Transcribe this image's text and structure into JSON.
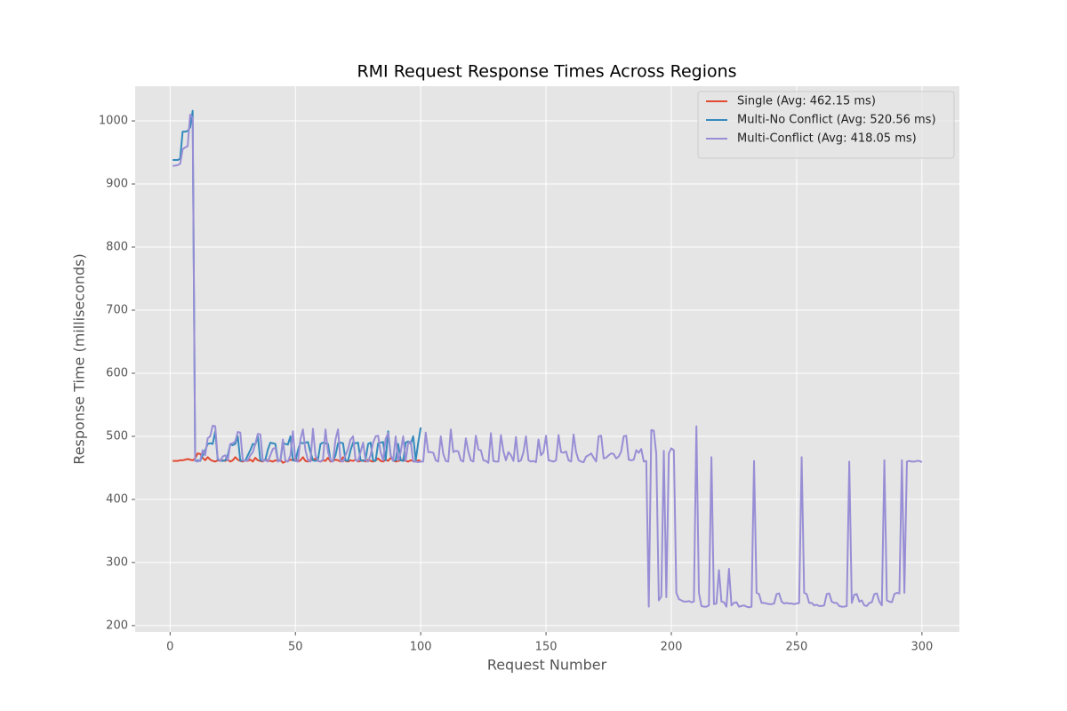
{
  "chart_data": {
    "type": "line",
    "title": "RMI Request Response Times Across Regions",
    "x_label": "Request Number",
    "y_label": "Response Time (milliseconds)",
    "xlim": [
      -13.95,
      314.95
    ],
    "ylim": [
      190,
      1055
    ],
    "xticks": [
      0,
      50,
      100,
      150,
      200,
      250,
      300
    ],
    "yticks": [
      200,
      300,
      400,
      500,
      600,
      700,
      800,
      900,
      1000
    ],
    "grid": true,
    "legend": "upper right",
    "series": [
      {
        "name": "Single (Avg: 462.15 ms)",
        "color": "#E24A33",
        "x": [
          1,
          2,
          3,
          4,
          5,
          6,
          7,
          8,
          9,
          10,
          11,
          12,
          13,
          14,
          15,
          16,
          17,
          18,
          19,
          20,
          21,
          22,
          23,
          24,
          25,
          26,
          27,
          28,
          29,
          30,
          31,
          32,
          33,
          34,
          35,
          36,
          37,
          38,
          39,
          40,
          41,
          42,
          43,
          44,
          45,
          46,
          47,
          48,
          49,
          50,
          51,
          52,
          53,
          54,
          55,
          56,
          57,
          58,
          59,
          60,
          61,
          62,
          63,
          64,
          65,
          66,
          67,
          68,
          69,
          70,
          71,
          72,
          73,
          74,
          75,
          76,
          77,
          78,
          79,
          80,
          81,
          82,
          83,
          84,
          85,
          86,
          87,
          88,
          89,
          90,
          91,
          92,
          93,
          94,
          95,
          96,
          97,
          98,
          99,
          100
        ],
        "values": [
          461,
          461,
          461,
          462,
          462,
          463,
          464,
          463,
          462,
          465,
          473,
          472,
          466,
          462,
          467,
          463,
          461,
          460,
          462,
          461,
          462,
          461,
          463,
          460,
          462,
          467,
          463,
          461,
          460,
          462,
          461,
          463,
          460,
          466,
          462,
          461,
          460,
          463,
          462,
          461,
          460,
          462,
          461,
          463,
          458,
          460,
          461,
          463,
          462,
          465,
          460,
          462,
          467,
          461,
          460,
          463,
          462,
          465,
          461,
          460,
          462,
          461,
          466,
          460,
          461,
          463,
          462,
          460,
          467,
          461,
          460,
          462,
          461,
          463,
          460,
          461,
          462,
          460,
          463,
          461,
          460,
          462,
          465,
          461,
          460,
          463,
          461,
          466,
          462,
          460,
          461,
          462,
          463,
          461,
          460,
          462,
          461,
          460,
          462,
          461
        ]
      },
      {
        "name": "Multi-No Conflict (Avg: 520.56 ms)",
        "color": "#348ABD",
        "x": [
          1,
          2,
          3,
          4,
          5,
          6,
          7,
          8,
          9,
          10,
          11,
          12,
          13,
          14,
          15,
          16,
          17,
          18,
          19,
          20,
          21,
          22,
          23,
          24,
          25,
          26,
          27,
          28,
          29,
          30,
          31,
          32,
          33,
          34,
          35,
          36,
          37,
          38,
          39,
          40,
          41,
          42,
          43,
          44,
          45,
          46,
          47,
          48,
          49,
          50,
          51,
          52,
          53,
          54,
          55,
          56,
          57,
          58,
          59,
          60,
          61,
          62,
          63,
          64,
          65,
          66,
          67,
          68,
          69,
          70,
          71,
          72,
          73,
          74,
          75,
          76,
          77,
          78,
          79,
          80,
          81,
          82,
          83,
          84,
          85,
          86,
          87,
          88,
          89,
          90,
          91,
          92,
          93,
          94,
          95,
          96,
          97,
          98,
          99,
          100
        ],
        "values": [
          938,
          938,
          938,
          940,
          983,
          983,
          984,
          990,
          1016,
          461,
          462,
          461,
          470,
          478,
          488,
          489,
          488,
          508,
          463,
          462,
          461,
          462,
          470,
          487,
          486,
          488,
          500,
          461,
          462,
          461,
          470,
          478,
          488,
          487,
          500,
          462,
          461,
          463,
          479,
          490,
          489,
          488,
          462,
          461,
          489,
          488,
          487,
          500,
          462,
          461,
          478,
          490,
          489,
          490,
          491,
          475,
          462,
          461,
          463,
          488,
          490,
          489,
          488,
          462,
          461,
          470,
          489,
          490,
          489,
          462,
          461,
          478,
          490,
          489,
          490,
          462,
          461,
          463,
          488,
          490,
          462,
          461,
          489,
          490,
          491,
          462,
          508,
          470,
          461,
          462,
          488,
          462,
          461,
          490,
          492,
          488,
          500,
          462,
          490,
          514
        ]
      },
      {
        "name": "Multi-Conflict (Avg: 418.05 ms)",
        "color": "#988ED5",
        "x": [
          1,
          2,
          3,
          4,
          5,
          6,
          7,
          8,
          9,
          10,
          11,
          12,
          13,
          14,
          15,
          16,
          17,
          18,
          19,
          20,
          21,
          22,
          23,
          24,
          25,
          26,
          27,
          28,
          29,
          30,
          31,
          32,
          33,
          34,
          35,
          36,
          37,
          38,
          39,
          40,
          41,
          42,
          43,
          44,
          45,
          46,
          47,
          48,
          49,
          50,
          51,
          52,
          53,
          54,
          55,
          56,
          57,
          58,
          59,
          60,
          61,
          62,
          63,
          64,
          65,
          66,
          67,
          68,
          69,
          70,
          71,
          72,
          73,
          74,
          75,
          76,
          77,
          78,
          79,
          80,
          81,
          82,
          83,
          84,
          85,
          86,
          87,
          88,
          89,
          90,
          91,
          92,
          93,
          94,
          95,
          96,
          97,
          98,
          99,
          100,
          101,
          102,
          103,
          104,
          105,
          106,
          107,
          108,
          109,
          110,
          111,
          112,
          113,
          114,
          115,
          116,
          117,
          118,
          119,
          120,
          121,
          122,
          123,
          124,
          125,
          126,
          127,
          128,
          129,
          130,
          131,
          132,
          133,
          134,
          135,
          136,
          137,
          138,
          139,
          140,
          141,
          142,
          143,
          144,
          145,
          146,
          147,
          148,
          149,
          150,
          151,
          152,
          153,
          154,
          155,
          156,
          157,
          158,
          159,
          160,
          161,
          162,
          163,
          164,
          165,
          166,
          167,
          168,
          169,
          170,
          171,
          172,
          173,
          174,
          175,
          176,
          177,
          178,
          179,
          180,
          181,
          182,
          183,
          184,
          185,
          186,
          187,
          188,
          189,
          190,
          191,
          192,
          193,
          194,
          195,
          196,
          197,
          198,
          199,
          200,
          201,
          202,
          203,
          204,
          205,
          206,
          207,
          208,
          209,
          210,
          211,
          212,
          213,
          214,
          215,
          216,
          217,
          218,
          219,
          220,
          221,
          222,
          223,
          224,
          225,
          226,
          227,
          228,
          229,
          230,
          231,
          232,
          233,
          234,
          235,
          236,
          237,
          238,
          239,
          240,
          241,
          242,
          243,
          244,
          245,
          246,
          247,
          248,
          249,
          250,
          251,
          252,
          253,
          254,
          255,
          256,
          257,
          258,
          259,
          260,
          261,
          262,
          263,
          264,
          265,
          266,
          267,
          268,
          269,
          270,
          271,
          272,
          273,
          274,
          275,
          276,
          277,
          278,
          279,
          280,
          281,
          282,
          283,
          284,
          285,
          286,
          287,
          288,
          289,
          290,
          291,
          292,
          293,
          294,
          295,
          296,
          297,
          298,
          299,
          300
        ],
        "values": [
          929,
          929,
          930,
          932,
          955,
          958,
          960,
          1010,
          1005,
          461,
          460,
          462,
          478,
          470,
          497,
          500,
          517,
          516,
          465,
          461,
          468,
          470,
          462,
          488,
          489,
          492,
          507,
          506,
          462,
          461,
          462,
          470,
          475,
          488,
          504,
          503,
          461,
          462,
          460,
          470,
          480,
          482,
          460,
          462,
          495,
          461,
          460,
          470,
          508,
          461,
          460,
          495,
          511,
          478,
          462,
          460,
          512,
          470,
          461,
          460,
          463,
          511,
          475,
          462,
          460,
          495,
          511,
          461,
          460,
          470,
          480,
          495,
          500,
          462,
          461,
          475,
          490,
          462,
          460,
          470,
          490,
          500,
          501,
          475,
          462,
          496,
          505,
          470,
          461,
          500,
          462,
          475,
          500,
          461,
          490,
          492,
          460,
          460,
          459,
          460,
          460,
          506,
          475,
          475,
          474,
          462,
          460,
          500,
          472,
          461,
          460,
          511,
          475,
          477,
          476,
          462,
          460,
          497,
          476,
          462,
          460,
          501,
          479,
          478,
          462,
          461,
          458,
          505,
          461,
          460,
          460,
          502,
          476,
          462,
          475,
          470,
          461,
          499,
          460,
          462,
          475,
          500,
          462,
          460,
          461,
          459,
          495,
          470,
          475,
          501,
          462,
          461,
          460,
          462,
          502,
          475,
          474,
          476,
          462,
          460,
          503,
          475,
          462,
          460,
          459,
          468,
          470,
          473,
          466,
          460,
          500,
          501,
          465,
          466,
          470,
          473,
          472,
          465,
          468,
          476,
          500,
          501,
          463,
          462,
          463,
          478,
          474,
          480,
          460,
          461,
          230,
          510,
          509,
          472,
          240,
          246,
          477,
          245,
          473,
          481,
          478,
          252,
          242,
          240,
          238,
          238,
          239,
          237,
          238,
          516,
          252,
          231,
          230,
          230,
          232,
          467,
          234,
          235,
          288,
          238,
          237,
          230,
          290,
          232,
          236,
          237,
          230,
          231,
          232,
          230,
          229,
          230,
          461,
          252,
          250,
          236,
          236,
          235,
          234,
          234,
          235,
          250,
          251,
          238,
          235,
          236,
          235,
          235,
          234,
          235,
          236,
          467,
          252,
          250,
          236,
          236,
          232,
          233,
          231,
          231,
          232,
          250,
          251,
          238,
          236,
          236,
          231,
          230,
          230,
          231,
          460,
          236,
          249,
          250,
          238,
          240,
          232,
          231,
          236,
          237,
          250,
          251,
          238,
          232,
          462,
          240,
          238,
          237,
          250,
          252,
          251,
          462,
          252,
          460,
          461,
          460,
          460,
          461,
          461,
          459
        ]
      }
    ]
  }
}
